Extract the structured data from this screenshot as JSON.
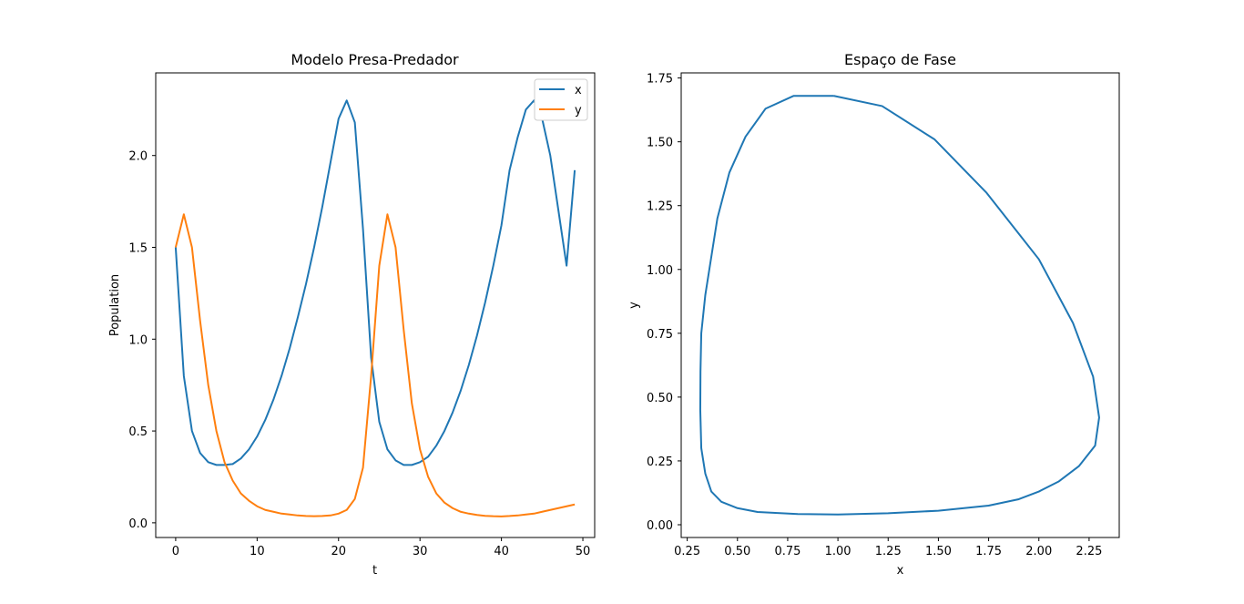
{
  "chart_data": [
    {
      "type": "line",
      "title": "Modelo Presa-Predador",
      "xlabel": "t",
      "ylabel": "Population",
      "xlim": [
        -2.45,
        51.45
      ],
      "ylim": [
        -0.08,
        2.45
      ],
      "xticks": [
        0,
        10,
        20,
        30,
        40,
        50
      ],
      "yticks": [
        0.0,
        0.5,
        1.0,
        1.5,
        2.0
      ],
      "xtick_labels": [
        "0",
        "10",
        "20",
        "30",
        "40",
        "50"
      ],
      "ytick_labels": [
        "0.0",
        "0.5",
        "1.0",
        "1.5",
        "2.0"
      ],
      "legend": "top-right",
      "grid": false,
      "x": [
        0,
        1,
        2,
        3,
        4,
        5,
        6,
        7,
        8,
        9,
        10,
        11,
        12,
        13,
        14,
        15,
        16,
        17,
        18,
        19,
        20,
        21,
        22,
        23,
        24,
        25,
        26,
        27,
        28,
        29,
        30,
        31,
        32,
        33,
        34,
        35,
        36,
        37,
        38,
        39,
        40,
        41,
        42,
        43,
        44,
        45,
        46,
        47,
        48,
        49
      ],
      "series": [
        {
          "name": "x",
          "color": "#1f77b4",
          "values": [
            1.5,
            0.8,
            0.5,
            0.38,
            0.33,
            0.315,
            0.315,
            0.32,
            0.35,
            0.4,
            0.47,
            0.56,
            0.67,
            0.8,
            0.95,
            1.12,
            1.3,
            1.5,
            1.72,
            1.96,
            2.2,
            2.3,
            2.18,
            1.6,
            0.9,
            0.55,
            0.4,
            0.34,
            0.315,
            0.315,
            0.33,
            0.36,
            0.42,
            0.5,
            0.6,
            0.72,
            0.86,
            1.02,
            1.2,
            1.4,
            1.62,
            1.92,
            2.1,
            2.25,
            2.3,
            2.2,
            2.0,
            1.7,
            1.4,
            1.92
          ]
        },
        {
          "name": "y",
          "color": "#ff7f0e",
          "values": [
            1.5,
            1.68,
            1.5,
            1.1,
            0.75,
            0.5,
            0.33,
            0.23,
            0.16,
            0.12,
            0.09,
            0.07,
            0.06,
            0.05,
            0.045,
            0.04,
            0.037,
            0.036,
            0.037,
            0.04,
            0.05,
            0.07,
            0.13,
            0.3,
            0.8,
            1.4,
            1.68,
            1.5,
            1.05,
            0.65,
            0.4,
            0.25,
            0.16,
            0.11,
            0.08,
            0.06,
            0.05,
            0.043,
            0.038,
            0.036,
            0.035,
            0.037,
            0.04,
            0.045,
            0.05,
            0.06,
            0.07,
            0.08,
            0.09,
            0.1
          ]
        }
      ]
    },
    {
      "type": "line",
      "title": "Espaço de Fase",
      "xlabel": "x",
      "ylabel": "y",
      "xlim": [
        0.22,
        2.4
      ],
      "ylim": [
        -0.05,
        1.77
      ],
      "xticks": [
        0.25,
        0.5,
        0.75,
        1.0,
        1.25,
        1.5,
        1.75,
        2.0,
        2.25
      ],
      "yticks": [
        0.0,
        0.25,
        0.5,
        0.75,
        1.0,
        1.25,
        1.5,
        1.75
      ],
      "xtick_labels": [
        "0.25",
        "0.50",
        "0.75",
        "1.00",
        "1.25",
        "1.50",
        "1.75",
        "2.00",
        "2.25"
      ],
      "ytick_labels": [
        "0.00",
        "0.25",
        "0.50",
        "0.75",
        "1.00",
        "1.25",
        "1.50",
        "1.75"
      ],
      "grid": false,
      "series": [
        {
          "color": "#1f77b4",
          "x": [
            0.98,
            1.22,
            1.48,
            1.74,
            2.0,
            2.17,
            2.27,
            2.3,
            2.28,
            2.2,
            2.1,
            2.0,
            1.9,
            1.75,
            1.5,
            1.25,
            1.0,
            0.8,
            0.6,
            0.5,
            0.42,
            0.37,
            0.34,
            0.32,
            0.315,
            0.316,
            0.32,
            0.34,
            0.37,
            0.4,
            0.46,
            0.54,
            0.64,
            0.78,
            0.98
          ],
          "y": [
            1.68,
            1.64,
            1.51,
            1.3,
            1.04,
            0.79,
            0.58,
            0.42,
            0.31,
            0.23,
            0.17,
            0.13,
            0.1,
            0.075,
            0.055,
            0.045,
            0.04,
            0.042,
            0.05,
            0.065,
            0.09,
            0.13,
            0.2,
            0.3,
            0.45,
            0.6,
            0.75,
            0.9,
            1.05,
            1.2,
            1.38,
            1.52,
            1.63,
            1.68,
            1.68
          ]
        }
      ]
    }
  ]
}
